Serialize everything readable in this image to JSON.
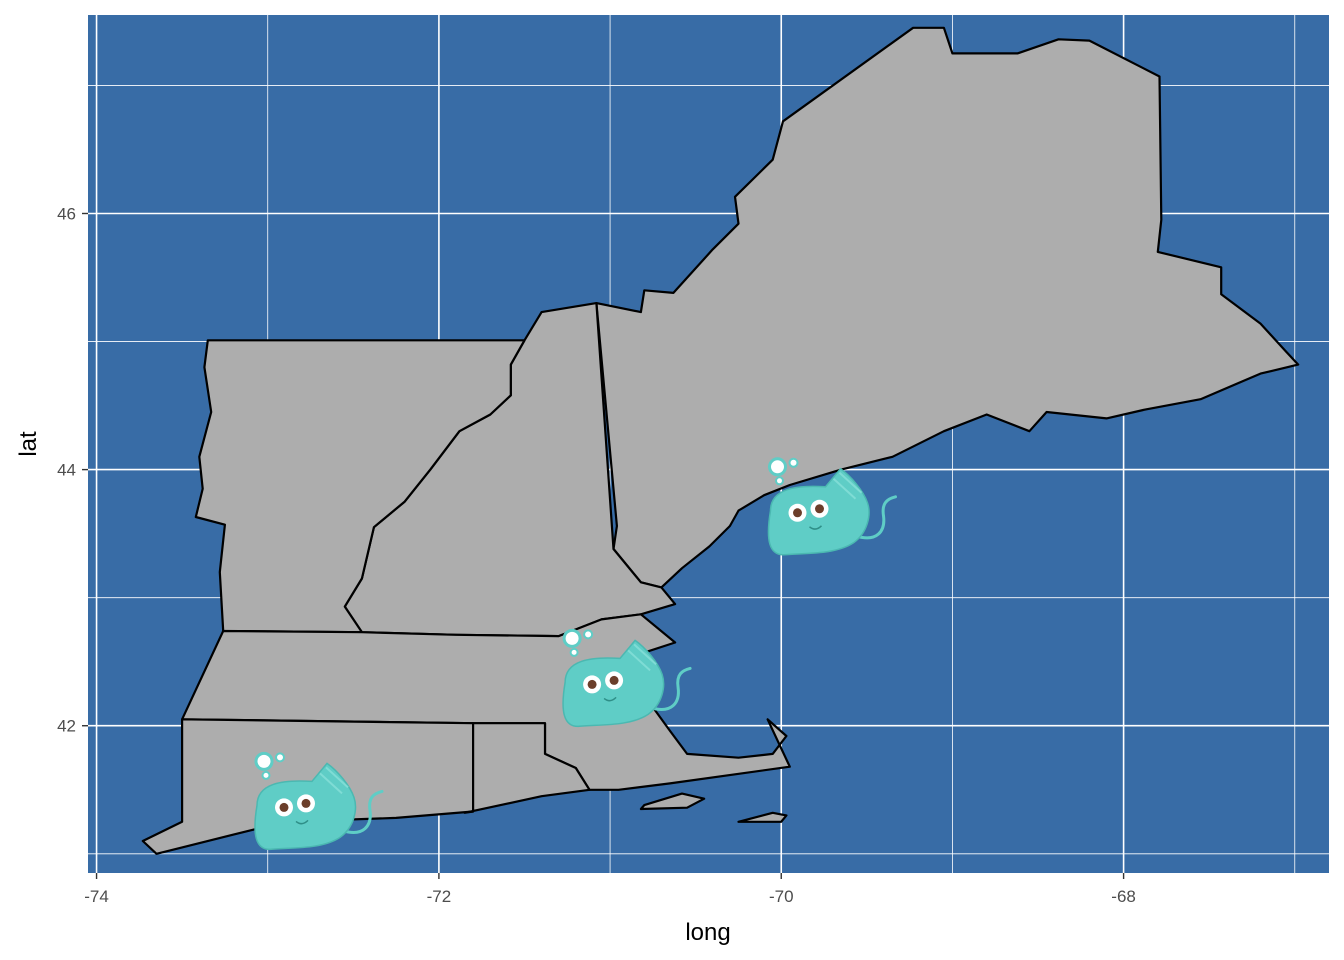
{
  "chart_data": {
    "type": "map",
    "xlabel": "long",
    "ylabel": "lat",
    "xlim": [
      -74.05,
      -66.8
    ],
    "ylim": [
      40.85,
      47.55
    ],
    "x_ticks": [
      -74,
      -72,
      -70,
      -68
    ],
    "y_ticks": [
      42,
      44,
      46
    ],
    "x_tick_labels": [
      "-74",
      "-72",
      "-70",
      "-68"
    ],
    "y_tick_labels": [
      "42",
      "44",
      "46"
    ],
    "grid": true,
    "colors": {
      "panel_background": "#386ca6",
      "land": "#adadad",
      "border": "#000000",
      "gridline": "#ffffff",
      "marker": "#5fcdc6"
    },
    "regions": [
      {
        "name": "maine",
        "lonlat": [
          [
            -71.08,
            45.3
          ],
          [
            -70.82,
            45.23
          ],
          [
            -70.8,
            45.4
          ],
          [
            -70.63,
            45.38
          ],
          [
            -70.4,
            45.72
          ],
          [
            -70.25,
            45.92
          ],
          [
            -70.27,
            46.13
          ],
          [
            -70.05,
            46.42
          ],
          [
            -69.99,
            46.72
          ],
          [
            -69.23,
            47.45
          ],
          [
            -69.05,
            47.45
          ],
          [
            -69.0,
            47.25
          ],
          [
            -68.62,
            47.25
          ],
          [
            -68.38,
            47.36
          ],
          [
            -68.2,
            47.35
          ],
          [
            -67.79,
            47.07
          ],
          [
            -67.78,
            45.95
          ],
          [
            -67.8,
            45.7
          ],
          [
            -67.43,
            45.58
          ],
          [
            -67.43,
            45.37
          ],
          [
            -67.2,
            45.14
          ],
          [
            -67.05,
            44.92
          ],
          [
            -66.98,
            44.82
          ],
          [
            -67.2,
            44.75
          ],
          [
            -67.55,
            44.55
          ],
          [
            -67.87,
            44.47
          ],
          [
            -68.1,
            44.4
          ],
          [
            -68.45,
            44.45
          ],
          [
            -68.55,
            44.3
          ],
          [
            -68.8,
            44.43
          ],
          [
            -69.05,
            44.3
          ],
          [
            -69.35,
            44.1
          ],
          [
            -69.65,
            44.0
          ],
          [
            -69.95,
            43.88
          ],
          [
            -70.1,
            43.8
          ],
          [
            -70.25,
            43.68
          ],
          [
            -70.3,
            43.56
          ],
          [
            -70.42,
            43.4
          ],
          [
            -70.58,
            43.23
          ],
          [
            -70.7,
            43.08
          ],
          [
            -70.82,
            43.12
          ],
          [
            -70.98,
            43.38
          ],
          [
            -70.96,
            43.56
          ],
          [
            -71.08,
            45.3
          ]
        ]
      },
      {
        "name": "new hampshire",
        "lonlat": [
          [
            -71.5,
            45.01
          ],
          [
            -71.4,
            45.23
          ],
          [
            -71.08,
            45.3
          ],
          [
            -70.98,
            43.38
          ],
          [
            -70.82,
            43.12
          ],
          [
            -70.7,
            43.08
          ],
          [
            -70.62,
            42.95
          ],
          [
            -70.82,
            42.87
          ],
          [
            -71.05,
            42.83
          ],
          [
            -71.3,
            42.7
          ],
          [
            -71.9,
            42.71
          ],
          [
            -72.45,
            42.73
          ],
          [
            -72.55,
            42.93
          ],
          [
            -72.45,
            43.15
          ],
          [
            -72.38,
            43.55
          ],
          [
            -72.2,
            43.75
          ],
          [
            -72.05,
            44.0
          ],
          [
            -71.88,
            44.3
          ],
          [
            -71.7,
            44.43
          ],
          [
            -71.58,
            44.58
          ],
          [
            -71.58,
            44.82
          ],
          [
            -71.5,
            45.01
          ]
        ]
      },
      {
        "name": "vermont",
        "lonlat": [
          [
            -73.35,
            45.01
          ],
          [
            -71.5,
            45.01
          ],
          [
            -71.58,
            44.82
          ],
          [
            -71.58,
            44.58
          ],
          [
            -71.7,
            44.43
          ],
          [
            -71.88,
            44.3
          ],
          [
            -72.05,
            44.0
          ],
          [
            -72.2,
            43.75
          ],
          [
            -72.38,
            43.55
          ],
          [
            -72.45,
            43.15
          ],
          [
            -72.55,
            42.93
          ],
          [
            -72.45,
            42.73
          ],
          [
            -73.26,
            42.74
          ],
          [
            -73.28,
            43.2
          ],
          [
            -73.25,
            43.57
          ],
          [
            -73.42,
            43.63
          ],
          [
            -73.38,
            43.85
          ],
          [
            -73.4,
            44.1
          ],
          [
            -73.33,
            44.45
          ],
          [
            -73.37,
            44.8
          ],
          [
            -73.35,
            45.01
          ]
        ]
      },
      {
        "name": "massachusetts",
        "lonlat": [
          [
            -73.5,
            42.05
          ],
          [
            -73.26,
            42.74
          ],
          [
            -72.45,
            42.73
          ],
          [
            -71.9,
            42.71
          ],
          [
            -71.3,
            42.7
          ],
          [
            -71.05,
            42.83
          ],
          [
            -70.82,
            42.87
          ],
          [
            -70.62,
            42.65
          ],
          [
            -70.85,
            42.55
          ],
          [
            -71.05,
            42.33
          ],
          [
            -70.78,
            42.2
          ],
          [
            -70.65,
            41.96
          ],
          [
            -70.55,
            41.78
          ],
          [
            -70.25,
            41.75
          ],
          [
            -70.05,
            41.78
          ],
          [
            -69.97,
            41.92
          ],
          [
            -70.08,
            42.05
          ],
          [
            -69.95,
            41.68
          ],
          [
            -70.65,
            41.55
          ],
          [
            -70.95,
            41.5
          ],
          [
            -71.12,
            41.5
          ],
          [
            -71.2,
            41.67
          ],
          [
            -71.38,
            41.78
          ],
          [
            -71.38,
            42.02
          ],
          [
            -71.8,
            42.02
          ],
          [
            -73.5,
            42.05
          ]
        ]
      },
      {
        "name": "connecticut",
        "lonlat": [
          [
            -73.5,
            42.05
          ],
          [
            -71.8,
            42.02
          ],
          [
            -71.8,
            41.33
          ],
          [
            -72.25,
            41.28
          ],
          [
            -72.9,
            41.25
          ],
          [
            -73.2,
            41.15
          ],
          [
            -73.5,
            41.05
          ],
          [
            -73.65,
            41.0
          ],
          [
            -73.73,
            41.1
          ],
          [
            -73.5,
            41.25
          ],
          [
            -73.5,
            42.05
          ]
        ]
      },
      {
        "name": "rhode island",
        "lonlat": [
          [
            -71.8,
            42.02
          ],
          [
            -71.38,
            42.02
          ],
          [
            -71.38,
            41.78
          ],
          [
            -71.2,
            41.67
          ],
          [
            -71.12,
            41.5
          ],
          [
            -71.4,
            41.45
          ],
          [
            -71.85,
            41.32
          ],
          [
            -71.8,
            41.33
          ],
          [
            -71.8,
            42.02
          ]
        ]
      },
      {
        "name": "marthas vineyard",
        "lonlat": [
          [
            -70.82,
            41.35
          ],
          [
            -70.55,
            41.36
          ],
          [
            -70.45,
            41.43
          ],
          [
            -70.58,
            41.47
          ],
          [
            -70.8,
            41.38
          ],
          [
            -70.82,
            41.35
          ]
        ]
      },
      {
        "name": "nantucket",
        "lonlat": [
          [
            -70.25,
            41.25
          ],
          [
            -70.0,
            41.25
          ],
          [
            -69.97,
            41.3
          ],
          [
            -70.05,
            41.32
          ],
          [
            -70.25,
            41.25
          ]
        ]
      }
    ],
    "markers": [
      {
        "name": "manta-ray-1",
        "lon": -72.8,
        "lat": 41.3
      },
      {
        "name": "manta-ray-2",
        "lon": -71.0,
        "lat": 42.26
      },
      {
        "name": "manta-ray-3",
        "lon": -69.8,
        "lat": 43.6
      }
    ]
  }
}
